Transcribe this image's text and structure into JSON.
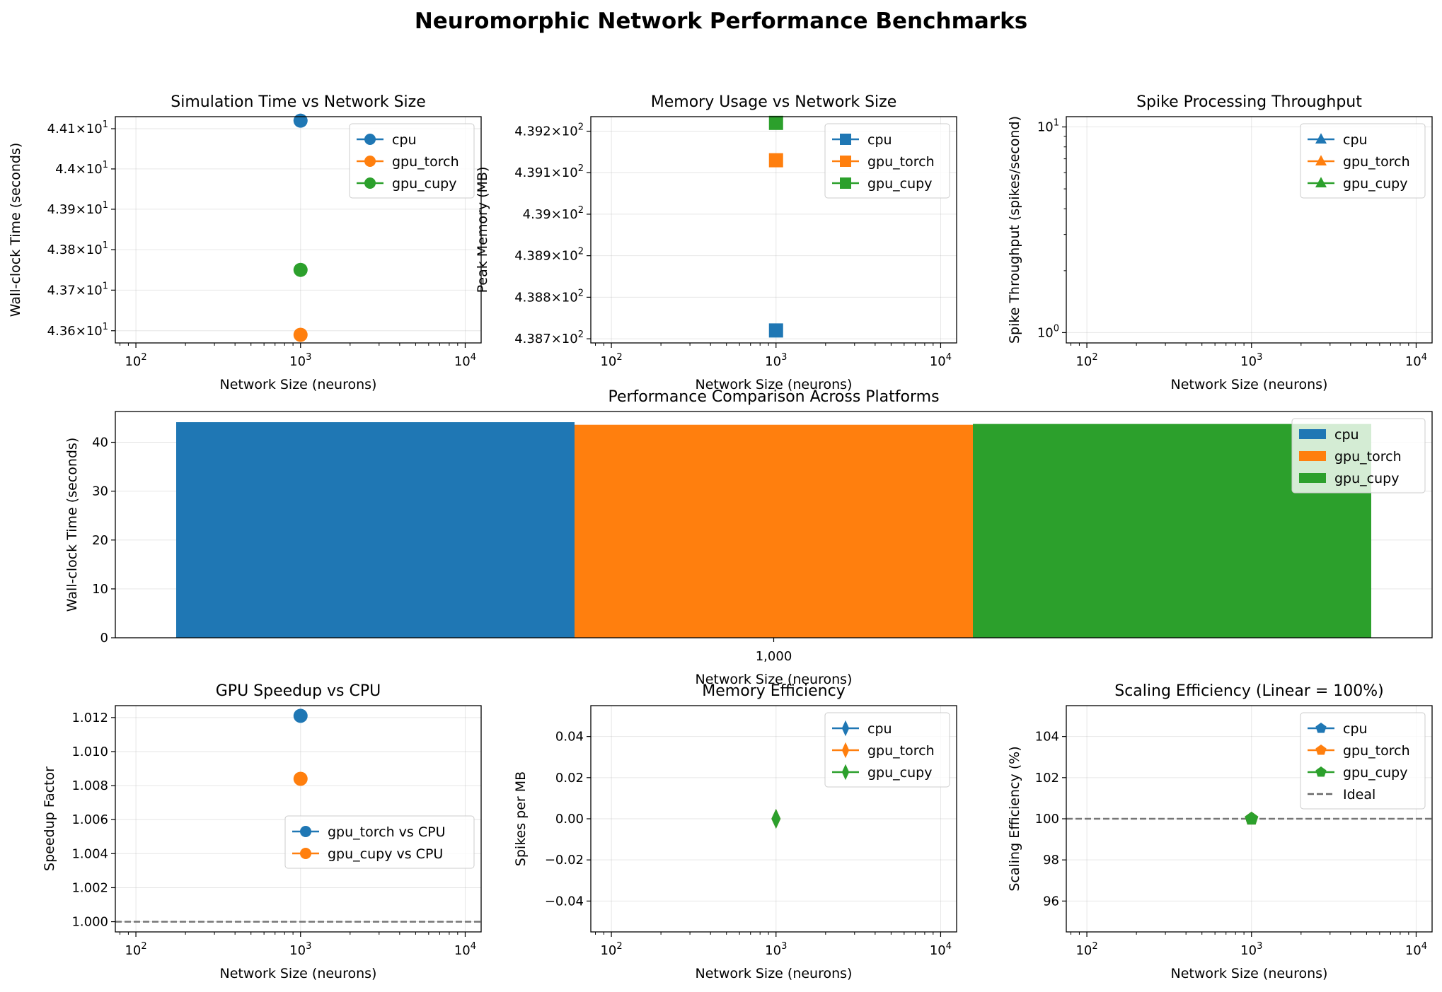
{
  "title": "Neuromorphic Network Performance Benchmarks",
  "colors": {
    "cpu": "#1f77b4",
    "gpu_torch": "#ff7f0e",
    "gpu_cupy": "#2ca02c",
    "ideal": "#696969"
  },
  "chart_data": [
    {
      "id": "sim-time",
      "type": "line",
      "title": "Simulation Time vs Network Size",
      "xlabel": "Network Size (neurons)",
      "ylabel": "Wall-clock Time (seconds)",
      "xscale": "log",
      "yscale": "log",
      "xlim": [
        75,
        12500
      ],
      "ylim": [
        43.57,
        44.13
      ],
      "xticks": [
        {
          "v": 100,
          "base": "10",
          "exp": "2"
        },
        {
          "v": 1000,
          "base": "10",
          "exp": "3"
        },
        {
          "v": 10000,
          "base": "10",
          "exp": "4"
        }
      ],
      "yticks": [
        {
          "v": 43.6,
          "mant": "4.36",
          "exp": "1"
        },
        {
          "v": 43.7,
          "mant": "4.37",
          "exp": "1"
        },
        {
          "v": 43.8,
          "mant": "4.38",
          "exp": "1"
        },
        {
          "v": 43.9,
          "mant": "4.39",
          "exp": "1"
        },
        {
          "v": 44.0,
          "mant": "4.4",
          "exp": "1"
        },
        {
          "v": 44.1,
          "mant": "4.41",
          "exp": "1"
        }
      ],
      "marker": "circle",
      "legend": "upper right",
      "series": [
        {
          "name": "cpu",
          "color": "#1f77b4",
          "x": [
            1000
          ],
          "y": [
            44.12
          ]
        },
        {
          "name": "gpu_torch",
          "color": "#ff7f0e",
          "x": [
            1000
          ],
          "y": [
            43.59
          ]
        },
        {
          "name": "gpu_cupy",
          "color": "#2ca02c",
          "x": [
            1000
          ],
          "y": [
            43.75
          ]
        }
      ],
      "grid": true
    },
    {
      "id": "memory",
      "type": "line",
      "title": "Memory Usage vs Network Size",
      "xlabel": "Network Size (neurons)",
      "ylabel": "Peak Memory (MB)",
      "xscale": "log",
      "yscale": "log",
      "xlim": [
        75,
        12500
      ],
      "ylim": [
        438.69,
        439.235
      ],
      "xticks": [
        {
          "v": 100,
          "base": "10",
          "exp": "2"
        },
        {
          "v": 1000,
          "base": "10",
          "exp": "3"
        },
        {
          "v": 10000,
          "base": "10",
          "exp": "4"
        }
      ],
      "yticks": [
        {
          "v": 438.7,
          "mant": "4.387",
          "exp": "2"
        },
        {
          "v": 438.8,
          "mant": "4.388",
          "exp": "2"
        },
        {
          "v": 438.9,
          "mant": "4.389",
          "exp": "2"
        },
        {
          "v": 439.0,
          "mant": "4.39",
          "exp": "2"
        },
        {
          "v": 439.1,
          "mant": "4.391",
          "exp": "2"
        },
        {
          "v": 439.2,
          "mant": "4.392",
          "exp": "2"
        }
      ],
      "marker": "square",
      "legend": "upper right",
      "series": [
        {
          "name": "cpu",
          "color": "#1f77b4",
          "x": [
            1000
          ],
          "y": [
            438.72
          ]
        },
        {
          "name": "gpu_torch",
          "color": "#ff7f0e",
          "x": [
            1000
          ],
          "y": [
            439.13
          ]
        },
        {
          "name": "gpu_cupy",
          "color": "#2ca02c",
          "x": [
            1000
          ],
          "y": [
            439.22
          ]
        }
      ],
      "grid": true
    },
    {
      "id": "throughput",
      "type": "line",
      "title": "Spike Processing Throughput",
      "xlabel": "Network Size (neurons)",
      "ylabel": "Spike Throughput (spikes/second)",
      "xscale": "log",
      "yscale": "log",
      "xlim": [
        75,
        12500
      ],
      "ylim": [
        0.891,
        11.22
      ],
      "xticks": [
        {
          "v": 100,
          "base": "10",
          "exp": "2"
        },
        {
          "v": 1000,
          "base": "10",
          "exp": "3"
        },
        {
          "v": 10000,
          "base": "10",
          "exp": "4"
        }
      ],
      "yticks": [
        {
          "v": 1,
          "mant": "10",
          "exp": "0",
          "pow": true
        },
        {
          "v": 10,
          "mant": "10",
          "exp": "1",
          "pow": true
        }
      ],
      "marker": "triangle",
      "legend": "upper right",
      "series": [
        {
          "name": "cpu",
          "color": "#1f77b4",
          "x": [],
          "y": []
        },
        {
          "name": "gpu_torch",
          "color": "#ff7f0e",
          "x": [],
          "y": []
        },
        {
          "name": "gpu_cupy",
          "color": "#2ca02c",
          "x": [],
          "y": []
        }
      ],
      "grid": true
    },
    {
      "id": "comparison",
      "type": "bar",
      "title": "Performance Comparison Across Platforms",
      "xlabel": "Network Size (neurons)",
      "ylabel": "Wall-clock Time (seconds)",
      "categories": [
        "1,000"
      ],
      "ylim": [
        0,
        46.3
      ],
      "yticks": [
        0,
        10,
        20,
        30,
        40
      ],
      "legend": "upper right",
      "series": [
        {
          "name": "cpu",
          "color": "#1f77b4",
          "values": [
            44.12
          ]
        },
        {
          "name": "gpu_torch",
          "color": "#ff7f0e",
          "values": [
            43.59
          ]
        },
        {
          "name": "gpu_cupy",
          "color": "#2ca02c",
          "values": [
            43.75
          ]
        }
      ],
      "grid": true
    },
    {
      "id": "speedup",
      "type": "line",
      "title": "GPU Speedup vs CPU",
      "xlabel": "Network Size (neurons)",
      "ylabel": "Speedup Factor",
      "xscale": "log",
      "yscale": "linear",
      "xlim": [
        75,
        12500
      ],
      "ylim": [
        0.9994,
        1.0127
      ],
      "xticks": [
        {
          "v": 100,
          "base": "10",
          "exp": "2"
        },
        {
          "v": 1000,
          "base": "10",
          "exp": "3"
        },
        {
          "v": 10000,
          "base": "10",
          "exp": "4"
        }
      ],
      "yticks": [
        {
          "v": 1.0,
          "label": "1.000"
        },
        {
          "v": 1.002,
          "label": "1.002"
        },
        {
          "v": 1.004,
          "label": "1.004"
        },
        {
          "v": 1.006,
          "label": "1.006"
        },
        {
          "v": 1.008,
          "label": "1.008"
        },
        {
          "v": 1.01,
          "label": "1.010"
        },
        {
          "v": 1.012,
          "label": "1.012"
        }
      ],
      "marker": "circle",
      "legend": "center right",
      "hline": 1.0,
      "series": [
        {
          "name": "gpu_torch vs CPU",
          "color": "#1f77b4",
          "x": [
            1000
          ],
          "y": [
            1.0121
          ]
        },
        {
          "name": "gpu_cupy vs CPU",
          "color": "#ff7f0e",
          "x": [
            1000
          ],
          "y": [
            1.0084
          ]
        }
      ],
      "grid": true
    },
    {
      "id": "mem-eff",
      "type": "line",
      "title": "Memory Efficiency",
      "xlabel": "Network Size (neurons)",
      "ylabel": "Spikes per MB",
      "xscale": "log",
      "yscale": "linear",
      "xlim": [
        75,
        12500
      ],
      "ylim": [
        -0.055,
        0.055
      ],
      "xticks": [
        {
          "v": 100,
          "base": "10",
          "exp": "2"
        },
        {
          "v": 1000,
          "base": "10",
          "exp": "3"
        },
        {
          "v": 10000,
          "base": "10",
          "exp": "4"
        }
      ],
      "yticks": [
        {
          "v": -0.04,
          "label": "−0.04"
        },
        {
          "v": -0.02,
          "label": "−0.02"
        },
        {
          "v": 0,
          "label": "0.00"
        },
        {
          "v": 0.02,
          "label": "0.02"
        },
        {
          "v": 0.04,
          "label": "0.04"
        }
      ],
      "marker": "diamond",
      "legend": "upper right",
      "series": [
        {
          "name": "cpu",
          "color": "#1f77b4",
          "x": [
            1000
          ],
          "y": [
            0
          ]
        },
        {
          "name": "gpu_torch",
          "color": "#ff7f0e",
          "x": [
            1000
          ],
          "y": [
            0
          ]
        },
        {
          "name": "gpu_cupy",
          "color": "#2ca02c",
          "x": [
            1000
          ],
          "y": [
            0
          ]
        }
      ],
      "grid": true
    },
    {
      "id": "scaling",
      "type": "line",
      "title": "Scaling Efficiency (Linear = 100%)",
      "xlabel": "Network Size (neurons)",
      "ylabel": "Scaling Efficiency (%)",
      "xscale": "log",
      "yscale": "linear",
      "xlim": [
        75,
        12500
      ],
      "ylim": [
        94.5,
        105.5
      ],
      "xticks": [
        {
          "v": 100,
          "base": "10",
          "exp": "2"
        },
        {
          "v": 1000,
          "base": "10",
          "exp": "3"
        },
        {
          "v": 10000,
          "base": "10",
          "exp": "4"
        }
      ],
      "yticks": [
        {
          "v": 96,
          "label": "96"
        },
        {
          "v": 98,
          "label": "98"
        },
        {
          "v": 100,
          "label": "100"
        },
        {
          "v": 102,
          "label": "102"
        },
        {
          "v": 104,
          "label": "104"
        }
      ],
      "marker": "pentagon",
      "legend": "upper right",
      "hline": 100,
      "hline_name": "Ideal",
      "series": [
        {
          "name": "cpu",
          "color": "#1f77b4",
          "x": [
            1000
          ],
          "y": [
            100
          ]
        },
        {
          "name": "gpu_torch",
          "color": "#ff7f0e",
          "x": [
            1000
          ],
          "y": [
            100
          ]
        },
        {
          "name": "gpu_cupy",
          "color": "#2ca02c",
          "x": [
            1000
          ],
          "y": [
            100
          ]
        }
      ],
      "grid": true
    }
  ]
}
